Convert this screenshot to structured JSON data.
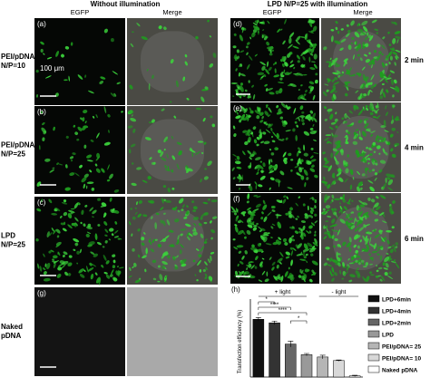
{
  "figure": {
    "left_title": "Without illumination",
    "right_title": "LPD N/P=25 with illumination",
    "left_columns": [
      "EGFP",
      "Merge"
    ],
    "right_columns": [
      "EGFP",
      "Merge"
    ],
    "row_labels": [
      [
        "PEI/pDNA",
        "N/P=10"
      ],
      [
        "PEI/pDNA",
        "N/P=25"
      ],
      [
        "LPD",
        "N/P=25"
      ],
      [
        "Naked",
        "pDNA"
      ]
    ],
    "time_labels": [
      "2 min",
      "4 min",
      "6 min"
    ],
    "left_panel_letters": [
      "(a)",
      "(b)",
      "(c)",
      "(g)"
    ],
    "right_panel_letters": [
      "(d)",
      "(e)",
      "(f)"
    ],
    "scale_label": "100 μm"
  },
  "chart_data": {
    "type": "bar",
    "panel_letter": "(h)",
    "y_label": "Transfection efficiency (%)",
    "categories": [
      "LPD+6min",
      "LPD+4min",
      "LPD+2min",
      "LPD",
      "PEI/pDNA= 25",
      "PEI/pDNA= 10",
      "Naked pDNA"
    ],
    "values": [
      49,
      46,
      28,
      19,
      17,
      14,
      1
    ],
    "errors": [
      1.5,
      1.5,
      2.5,
      1,
      1.5,
      0.5,
      0.5
    ],
    "colors": [
      "#111111",
      "#333333",
      "#666666",
      "#999999",
      "#b5b5b5",
      "#d8d8d8",
      "#ffffff"
    ],
    "ylim": [
      0,
      60
    ],
    "group_labels": [
      "+ light",
      "- light"
    ],
    "significance": [
      "*",
      "****",
      "****",
      "*"
    ]
  }
}
